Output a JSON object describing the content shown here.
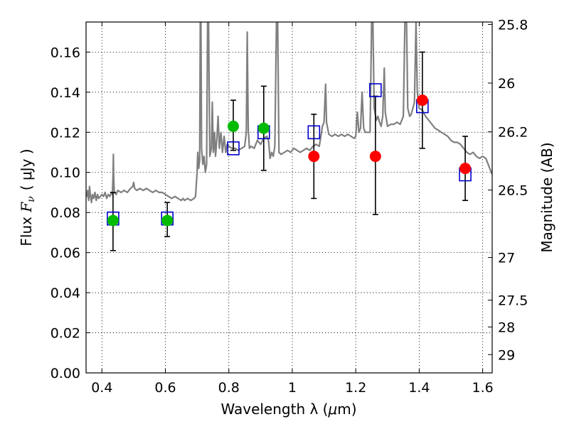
{
  "chart_data": {
    "type": "scatter",
    "xlabel_main": "Wavelength  λ (",
    "xlabel_unit": "μ",
    "xlabel_end": "m)",
    "ylabel_main": "Flux ",
    "ylabel_math": "F",
    "ylabel_sub": "ν",
    "ylabel_unit": "( μJy )",
    "y2label": "Magnitude (AB)",
    "xlim": [
      0.35,
      1.63
    ],
    "ylim": [
      0.0,
      0.175
    ],
    "x_ticks": [
      0.4,
      0.6,
      0.8,
      1.0,
      1.2,
      1.4,
      1.6
    ],
    "x_tick_labels": [
      "0.4",
      "0.6",
      "0.8",
      "1",
      "1.2",
      "1.4",
      "1.6"
    ],
    "y_ticks": [
      0.0,
      0.02,
      0.04,
      0.06,
      0.08,
      0.1,
      0.12,
      0.14,
      0.16
    ],
    "y_tick_labels": [
      "0.00",
      "0.02",
      "0.04",
      "0.06",
      "0.08",
      "0.10",
      "0.12",
      "0.14",
      "0.16"
    ],
    "mag_ticks": [
      25.8,
      26,
      26.2,
      26.5,
      27,
      27.5,
      28,
      29
    ],
    "mag_tick_labels": [
      "25.8",
      "26",
      "26.2",
      "26.5",
      "27",
      "27.5",
      "28",
      "29"
    ],
    "grid": true,
    "colors": {
      "model": "#7f7f7f",
      "green": "#00bb00",
      "red": "#ff0000",
      "box": "#0000cc",
      "error": "#000000"
    },
    "model_spectrum": [
      [
        0.35,
        0.09
      ],
      [
        0.352,
        0.088
      ],
      [
        0.355,
        0.091
      ],
      [
        0.358,
        0.086
      ],
      [
        0.361,
        0.093
      ],
      [
        0.364,
        0.088
      ],
      [
        0.367,
        0.085
      ],
      [
        0.37,
        0.089
      ],
      [
        0.374,
        0.087
      ],
      [
        0.378,
        0.09
      ],
      [
        0.382,
        0.086
      ],
      [
        0.386,
        0.089
      ],
      [
        0.39,
        0.087
      ],
      [
        0.395,
        0.088
      ],
      [
        0.4,
        0.089
      ],
      [
        0.405,
        0.088
      ],
      [
        0.41,
        0.09
      ],
      [
        0.415,
        0.087
      ],
      [
        0.42,
        0.089
      ],
      [
        0.425,
        0.088
      ],
      [
        0.43,
        0.09
      ],
      [
        0.433,
        0.089
      ],
      [
        0.435,
        0.098
      ],
      [
        0.436,
        0.109
      ],
      [
        0.437,
        0.098
      ],
      [
        0.439,
        0.09
      ],
      [
        0.445,
        0.089
      ],
      [
        0.45,
        0.091
      ],
      [
        0.46,
        0.09
      ],
      [
        0.47,
        0.091
      ],
      [
        0.48,
        0.09
      ],
      [
        0.49,
        0.092
      ],
      [
        0.497,
        0.093
      ],
      [
        0.5,
        0.095
      ],
      [
        0.503,
        0.092
      ],
      [
        0.51,
        0.091
      ],
      [
        0.52,
        0.092
      ],
      [
        0.53,
        0.091
      ],
      [
        0.54,
        0.092
      ],
      [
        0.55,
        0.091
      ],
      [
        0.56,
        0.09
      ],
      [
        0.57,
        0.091
      ],
      [
        0.58,
        0.09
      ],
      [
        0.59,
        0.09
      ],
      [
        0.6,
        0.089
      ],
      [
        0.61,
        0.088
      ],
      [
        0.62,
        0.087
      ],
      [
        0.63,
        0.088
      ],
      [
        0.64,
        0.087
      ],
      [
        0.65,
        0.086
      ],
      [
        0.656,
        0.087
      ],
      [
        0.66,
        0.086
      ],
      [
        0.67,
        0.087
      ],
      [
        0.68,
        0.086
      ],
      [
        0.69,
        0.087
      ],
      [
        0.695,
        0.088
      ],
      [
        0.7,
        0.1
      ],
      [
        0.702,
        0.11
      ],
      [
        0.705,
        0.102
      ],
      [
        0.708,
        0.106
      ],
      [
        0.71,
        0.175
      ],
      [
        0.712,
        0.175
      ],
      [
        0.714,
        0.112
      ],
      [
        0.718,
        0.104
      ],
      [
        0.722,
        0.108
      ],
      [
        0.726,
        0.1
      ],
      [
        0.73,
        0.104
      ],
      [
        0.733,
        0.175
      ],
      [
        0.736,
        0.175
      ],
      [
        0.74,
        0.108
      ],
      [
        0.745,
        0.112
      ],
      [
        0.748,
        0.135
      ],
      [
        0.751,
        0.11
      ],
      [
        0.755,
        0.12
      ],
      [
        0.758,
        0.108
      ],
      [
        0.762,
        0.116
      ],
      [
        0.766,
        0.128
      ],
      [
        0.77,
        0.112
      ],
      [
        0.775,
        0.12
      ],
      [
        0.78,
        0.11
      ],
      [
        0.785,
        0.118
      ],
      [
        0.79,
        0.11
      ],
      [
        0.795,
        0.114
      ],
      [
        0.8,
        0.113
      ],
      [
        0.81,
        0.112
      ],
      [
        0.82,
        0.112
      ],
      [
        0.83,
        0.111
      ],
      [
        0.84,
        0.112
      ],
      [
        0.85,
        0.113
      ],
      [
        0.855,
        0.12
      ],
      [
        0.858,
        0.17
      ],
      [
        0.861,
        0.122
      ],
      [
        0.865,
        0.112
      ],
      [
        0.87,
        0.113
      ],
      [
        0.88,
        0.112
      ],
      [
        0.89,
        0.116
      ],
      [
        0.9,
        0.114
      ],
      [
        0.91,
        0.117
      ],
      [
        0.92,
        0.118
      ],
      [
        0.925,
        0.116
      ],
      [
        0.93,
        0.107
      ],
      [
        0.935,
        0.11
      ],
      [
        0.94,
        0.108
      ],
      [
        0.945,
        0.113
      ],
      [
        0.95,
        0.175
      ],
      [
        0.954,
        0.175
      ],
      [
        0.958,
        0.11
      ],
      [
        0.965,
        0.109
      ],
      [
        0.975,
        0.11
      ],
      [
        0.985,
        0.111
      ],
      [
        0.995,
        0.11
      ],
      [
        1.005,
        0.112
      ],
      [
        1.015,
        0.111
      ],
      [
        1.025,
        0.11
      ],
      [
        1.035,
        0.111
      ],
      [
        1.045,
        0.112
      ],
      [
        1.055,
        0.111
      ],
      [
        1.065,
        0.113
      ],
      [
        1.075,
        0.114
      ],
      [
        1.085,
        0.113
      ],
      [
        1.09,
        0.118
      ],
      [
        1.095,
        0.123
      ],
      [
        1.1,
        0.125
      ],
      [
        1.105,
        0.144
      ],
      [
        1.108,
        0.125
      ],
      [
        1.115,
        0.119
      ],
      [
        1.125,
        0.118
      ],
      [
        1.135,
        0.119
      ],
      [
        1.145,
        0.118
      ],
      [
        1.155,
        0.119
      ],
      [
        1.165,
        0.118
      ],
      [
        1.175,
        0.119
      ],
      [
        1.185,
        0.118
      ],
      [
        1.195,
        0.117
      ],
      [
        1.2,
        0.118
      ],
      [
        1.205,
        0.13
      ],
      [
        1.21,
        0.12
      ],
      [
        1.215,
        0.122
      ],
      [
        1.22,
        0.14
      ],
      [
        1.225,
        0.122
      ],
      [
        1.23,
        0.12
      ],
      [
        1.24,
        0.12
      ],
      [
        1.245,
        0.12
      ],
      [
        1.25,
        0.175
      ],
      [
        1.254,
        0.175
      ],
      [
        1.258,
        0.132
      ],
      [
        1.265,
        0.126
      ],
      [
        1.27,
        0.128
      ],
      [
        1.275,
        0.125
      ],
      [
        1.28,
        0.123
      ],
      [
        1.285,
        0.128
      ],
      [
        1.29,
        0.152
      ],
      [
        1.293,
        0.13
      ],
      [
        1.3,
        0.123
      ],
      [
        1.31,
        0.124
      ],
      [
        1.32,
        0.124
      ],
      [
        1.33,
        0.125
      ],
      [
        1.34,
        0.124
      ],
      [
        1.345,
        0.126
      ],
      [
        1.35,
        0.128
      ],
      [
        1.355,
        0.175
      ],
      [
        1.36,
        0.175
      ],
      [
        1.364,
        0.132
      ],
      [
        1.37,
        0.128
      ],
      [
        1.375,
        0.129
      ],
      [
        1.38,
        0.132
      ],
      [
        1.385,
        0.135
      ],
      [
        1.39,
        0.175
      ],
      [
        1.394,
        0.14
      ],
      [
        1.4,
        0.132
      ],
      [
        1.41,
        0.131
      ],
      [
        1.42,
        0.128
      ],
      [
        1.43,
        0.126
      ],
      [
        1.44,
        0.124
      ],
      [
        1.45,
        0.122
      ],
      [
        1.46,
        0.121
      ],
      [
        1.47,
        0.12
      ],
      [
        1.48,
        0.119
      ],
      [
        1.49,
        0.118
      ],
      [
        1.5,
        0.116
      ],
      [
        1.51,
        0.115
      ],
      [
        1.52,
        0.115
      ],
      [
        1.53,
        0.114
      ],
      [
        1.54,
        0.112
      ],
      [
        1.55,
        0.11
      ],
      [
        1.56,
        0.109
      ],
      [
        1.57,
        0.11
      ],
      [
        1.58,
        0.108
      ],
      [
        1.59,
        0.107
      ],
      [
        1.6,
        0.108
      ],
      [
        1.61,
        0.107
      ],
      [
        1.62,
        0.103
      ],
      [
        1.63,
        0.099
      ]
    ],
    "observed_green": [
      {
        "x": 0.435,
        "y": 0.076,
        "yerr": [
          0.061,
          0.09
        ]
      },
      {
        "x": 0.606,
        "y": 0.076,
        "yerr": [
          0.068,
          0.085
        ]
      },
      {
        "x": 0.814,
        "y": 0.123,
        "yerr": [
          0.111,
          0.136
        ]
      },
      {
        "x": 0.91,
        "y": 0.122,
        "yerr": [
          0.101,
          0.143
        ]
      }
    ],
    "observed_red": [
      {
        "x": 1.068,
        "y": 0.108,
        "yerr": [
          0.087,
          0.129
        ]
      },
      {
        "x": 1.262,
        "y": 0.108,
        "yerr": [
          0.079,
          0.138
        ]
      },
      {
        "x": 1.41,
        "y": 0.136,
        "yerr": [
          0.112,
          0.16
        ]
      },
      {
        "x": 1.545,
        "y": 0.102,
        "yerr": [
          0.086,
          0.118
        ]
      }
    ],
    "model_boxes": [
      {
        "x": 0.435,
        "y": 0.077
      },
      {
        "x": 0.606,
        "y": 0.077
      },
      {
        "x": 0.814,
        "y": 0.112
      },
      {
        "x": 0.91,
        "y": 0.12
      },
      {
        "x": 1.068,
        "y": 0.12
      },
      {
        "x": 1.262,
        "y": 0.141
      },
      {
        "x": 1.41,
        "y": 0.133
      },
      {
        "x": 1.545,
        "y": 0.099
      }
    ]
  }
}
